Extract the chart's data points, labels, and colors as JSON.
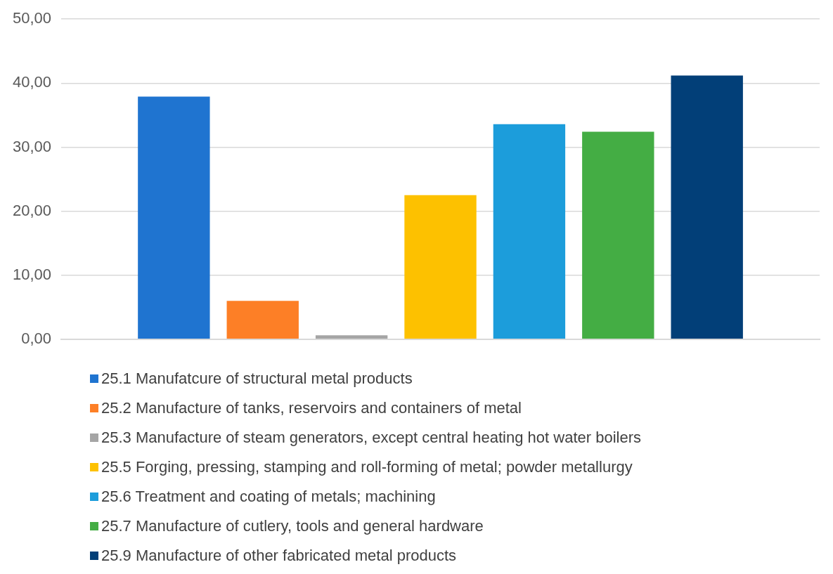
{
  "chart_data": {
    "type": "bar",
    "categories": [
      null
    ],
    "series": [
      {
        "name": "25.1 Manufatcure of structural metal products",
        "color": "#1f74d0",
        "values": [
          37.9
        ]
      },
      {
        "name": "25.2 Manufacture of tanks, reservoirs and containers of metal",
        "color": "#fd7f26",
        "values": [
          6.0
        ]
      },
      {
        "name": "25.3 Manufacture of steam generators, except central heating hot water boilers",
        "color": "#a5a5a5",
        "values": [
          0.6
        ]
      },
      {
        "name": "25.5 Forging, pressing, stamping and roll-forming of metal; powder metallurgy",
        "color": "#fdc100",
        "values": [
          22.5
        ]
      },
      {
        "name": "25.6 Treatment and coating of metals; machining",
        "color": "#1c9ddb",
        "values": [
          33.6
        ]
      },
      {
        "name": "25.7 Manufacture of cutlery, tools and general hardware",
        "color": "#44ad44",
        "values": [
          32.4
        ]
      },
      {
        "name": "25.9 Manufacture of other fabricated metal products",
        "color": "#023f78",
        "values": [
          41.2
        ]
      }
    ],
    "ylim": [
      0,
      50
    ],
    "yticks": [
      {
        "value": 0,
        "label": "0,00"
      },
      {
        "value": 10,
        "label": "10,00"
      },
      {
        "value": 20,
        "label": "20,00"
      },
      {
        "value": 30,
        "label": "30,00"
      },
      {
        "value": 40,
        "label": "40,00"
      },
      {
        "value": 50,
        "label": "50,00"
      }
    ],
    "grid": "y",
    "legend": "bottom"
  }
}
